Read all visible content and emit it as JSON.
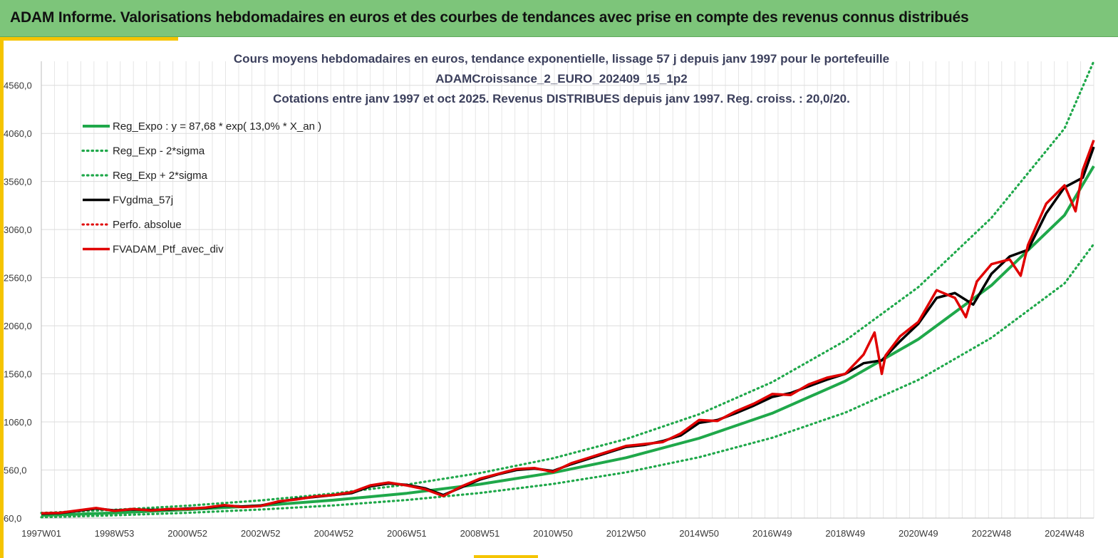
{
  "header": {
    "title": "ADAM Informe. Valorisations hebdomadaires en euros et des courbes de tendances avec prise en compte des revenus connus distribués"
  },
  "chart_data": {
    "type": "line",
    "title_lines": [
      "Cours moyens hebdomadaires  en euros, tendance exponentielle, lissage 57 j depuis janv 1997 pour le portefeuille",
      "ADAMCroissance_2_EURO_202409_15_1p2",
      "Cotations  entre janv 1997 et oct 2025. Revenus DISTRIBUES depuis janv 1997. Reg. croiss. : 20,0/20."
    ],
    "xlabel": "",
    "ylabel": "",
    "ylim": [
      60,
      4810
    ],
    "y_ticks": [
      60,
      560,
      1060,
      1560,
      2060,
      2560,
      3060,
      3560,
      4060,
      4560
    ],
    "y_tick_labels": [
      "60,0",
      "560,0",
      "1060,0",
      "1560,0",
      "2060,0",
      "2560,0",
      "3060,0",
      "3560,0",
      "4060,0",
      "4560,0"
    ],
    "x_range_years": [
      1997.0,
      2025.8
    ],
    "x_tick_labels": [
      "1997W01",
      "1998W53",
      "2000W52",
      "2002W52",
      "2004W52",
      "2006W51",
      "2008W51",
      "2010W50",
      "2012W50",
      "2014W50",
      "2016W49",
      "2018W49",
      "2020W49",
      "2022W48",
      "2024W48"
    ],
    "x_tick_years": [
      1997.0,
      1999.0,
      2001.0,
      2003.0,
      2005.0,
      2007.0,
      2009.0,
      2011.0,
      2013.0,
      2015.0,
      2017.0,
      2019.0,
      2021.0,
      2023.0,
      2025.0
    ],
    "grid": true,
    "legend_position": "top-left",
    "series": [
      {
        "name": "Reg_Expo : y = 87,68 * exp( 13,0% *  X_an )",
        "color": "#1fa84a",
        "style": "solid",
        "x": [
          1997.0,
          1999.0,
          2001.0,
          2003.0,
          2005.0,
          2007.0,
          2009.0,
          2011.0,
          2013.0,
          2015.0,
          2017.0,
          2019.0,
          2021.0,
          2023.0,
          2025.0,
          2025.8
        ],
        "values": [
          88,
          114,
          148,
          190,
          247,
          318,
          412,
          532,
          688,
          890,
          1150,
          1485,
          1920,
          2480,
          3210,
          3720
        ]
      },
      {
        "name": "Reg_Exp - 2*sigma",
        "color": "#1fa84a",
        "style": "dotted",
        "x": [
          1997.0,
          1999.0,
          2001.0,
          2003.0,
          2005.0,
          2007.0,
          2009.0,
          2011.0,
          2013.0,
          2015.0,
          2017.0,
          2019.0,
          2021.0,
          2023.0,
          2025.0,
          2025.8
        ],
        "values": [
          69,
          89,
          115,
          149,
          192,
          248,
          321,
          415,
          536,
          693,
          895,
          1157,
          1497,
          1935,
          2500,
          2910
        ]
      },
      {
        "name": "Reg_Exp + 2*sigma",
        "color": "#1fa84a",
        "style": "dotted",
        "x": [
          1997.0,
          1999.0,
          2001.0,
          2003.0,
          2005.0,
          2007.0,
          2009.0,
          2011.0,
          2013.0,
          2015.0,
          2017.0,
          2019.0,
          2021.0,
          2023.0,
          2025.0,
          2025.8
        ],
        "values": [
          113,
          146,
          189,
          244,
          316,
          408,
          528,
          682,
          882,
          1140,
          1474,
          1905,
          2462,
          3182,
          4112,
          4810
        ]
      },
      {
        "name": "FVgdma_57j",
        "color": "#000000",
        "style": "solid",
        "x": [
          1997.0,
          1997.5,
          1998.0,
          1998.5,
          1999.0,
          1999.5,
          2000.0,
          2000.5,
          2001.0,
          2001.5,
          2002.0,
          2002.5,
          2003.0,
          2003.5,
          2004.0,
          2004.5,
          2005.0,
          2005.5,
          2006.0,
          2006.5,
          2007.0,
          2007.5,
          2008.0,
          2008.5,
          2009.0,
          2009.5,
          2010.0,
          2010.5,
          2011.0,
          2011.5,
          2012.0,
          2012.5,
          2013.0,
          2013.5,
          2014.0,
          2014.5,
          2015.0,
          2015.5,
          2016.0,
          2016.5,
          2017.0,
          2017.5,
          2018.0,
          2018.5,
          2019.0,
          2019.5,
          2020.0,
          2020.5,
          2021.0,
          2021.5,
          2022.0,
          2022.5,
          2023.0,
          2023.5,
          2024.0,
          2024.5,
          2025.0,
          2025.5,
          2025.8
        ],
        "values": [
          105,
          112,
          135,
          160,
          140,
          150,
          145,
          150,
          160,
          165,
          190,
          180,
          190,
          230,
          260,
          280,
          300,
          320,
          390,
          420,
          405,
          370,
          300,
          380,
          460,
          515,
          560,
          575,
          550,
          620,
          680,
          740,
          800,
          820,
          860,
          920,
          1050,
          1080,
          1150,
          1230,
          1320,
          1360,
          1430,
          1500,
          1560,
          1670,
          1700,
          1900,
          2080,
          2350,
          2400,
          2280,
          2600,
          2780,
          2850,
          3230,
          3500,
          3600,
          3920
        ]
      },
      {
        "name": "Perfo. absolue",
        "color": "#e00000",
        "style": "dotted",
        "x": [
          1997.0,
          1999.0,
          2002.0,
          2005.0,
          2008.0,
          2010.0,
          2012.0,
          2014.0,
          2016.0,
          2018.0,
          2020.0,
          2022.0,
          2024.0,
          2025.8
        ],
        "values": [
          105,
          140,
          190,
          300,
          310,
          560,
          680,
          860,
          1150,
          1430,
          1700,
          2400,
          2850,
          3920
        ]
      },
      {
        "name": "FVADAM_Ptf_avec_div",
        "color": "#e00000",
        "style": "solid",
        "x": [
          1997.0,
          1997.5,
          1998.0,
          1998.5,
          1999.0,
          1999.5,
          2000.0,
          2000.5,
          2001.0,
          2001.5,
          2002.0,
          2002.5,
          2003.0,
          2003.5,
          2004.0,
          2004.5,
          2005.0,
          2005.5,
          2006.0,
          2006.5,
          2007.0,
          2007.5,
          2008.0,
          2008.5,
          2009.0,
          2009.5,
          2010.0,
          2010.5,
          2011.0,
          2011.5,
          2012.0,
          2012.5,
          2013.0,
          2013.5,
          2014.0,
          2014.5,
          2015.0,
          2015.5,
          2016.0,
          2016.5,
          2017.0,
          2017.5,
          2018.0,
          2018.5,
          2019.0,
          2019.5,
          2019.8,
          2020.0,
          2020.1,
          2020.5,
          2021.0,
          2021.5,
          2022.0,
          2022.3,
          2022.6,
          2023.0,
          2023.5,
          2023.8,
          2024.0,
          2024.5,
          2025.0,
          2025.3,
          2025.5,
          2025.8
        ],
        "values": [
          110,
          115,
          140,
          165,
          135,
          155,
          140,
          155,
          155,
          170,
          195,
          175,
          185,
          235,
          255,
          285,
          300,
          330,
          400,
          430,
          400,
          360,
          290,
          390,
          470,
          520,
          570,
          580,
          540,
          630,
          690,
          750,
          810,
          830,
          850,
          940,
          1080,
          1070,
          1170,
          1250,
          1350,
          1340,
          1450,
          1520,
          1560,
          1760,
          1990,
          1560,
          1750,
          1950,
          2100,
          2430,
          2350,
          2150,
          2520,
          2700,
          2750,
          2580,
          2900,
          3330,
          3520,
          3250,
          3680,
          3990
        ]
      }
    ]
  }
}
